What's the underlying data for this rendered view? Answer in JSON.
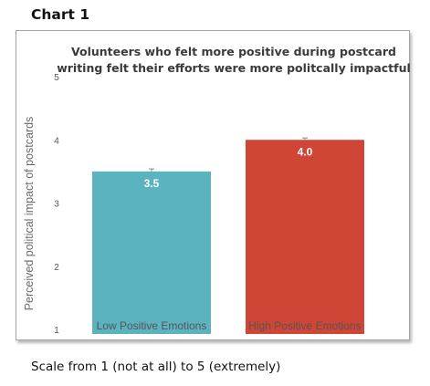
{
  "heading": "Chart 1",
  "caption": "Scale from 1 (not at all) to 5 (extremely)",
  "chart_data": {
    "type": "bar",
    "title": "Volunteers who felt more positive during postcard writing felt their efforts were more politcally impactful",
    "title_lines": [
      "Volunteers who felt more positive during postcard",
      "writing felt their efforts were more politcally impactful"
    ],
    "ylabel": "Perceived political impact of postcards",
    "xlabel": "",
    "categories": [
      "Low Positive Emotions",
      "High Positive Emotions"
    ],
    "values": [
      3.5,
      4.0
    ],
    "data_labels": [
      "3.5",
      "4.0"
    ],
    "error": [
      0.04,
      0.03
    ],
    "colors": [
      "#5cb3c0",
      "#cf4637"
    ],
    "ylim": [
      1,
      5
    ],
    "yticks": [
      "1",
      "2",
      "3",
      "4",
      "5"
    ],
    "grid": false,
    "legend": "none"
  }
}
